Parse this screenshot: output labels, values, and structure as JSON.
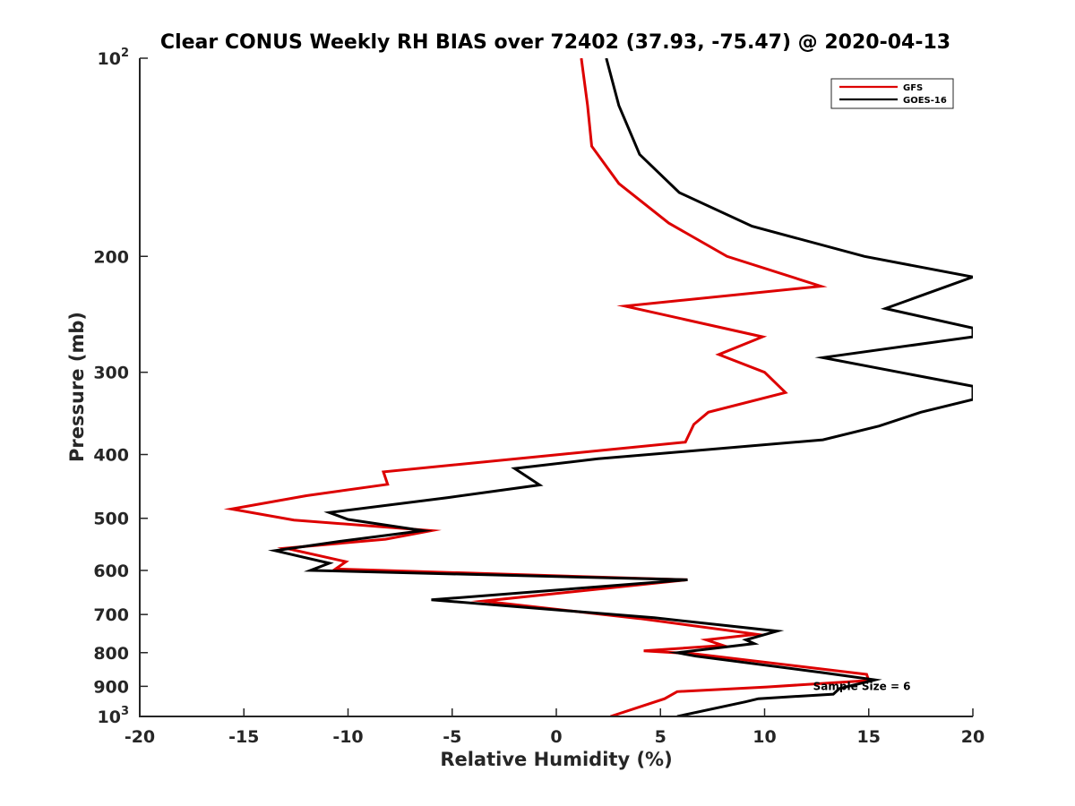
{
  "chart_data": {
    "type": "line",
    "title": "Clear CONUS Weekly RH BIAS over 72402 (37.93, -75.47) @ 2020-04-13",
    "xlabel": "Relative Humidity (%)",
    "ylabel": "Pressure (mb)",
    "xlim": [
      -20,
      20
    ],
    "ylim": [
      100,
      1000
    ],
    "yscale": "log",
    "yreversed": true,
    "xticks": [
      -20,
      -15,
      -10,
      -5,
      0,
      5,
      10,
      15,
      20
    ],
    "xtick_labels": [
      "-20",
      "-15",
      "-10",
      "-5",
      "0",
      "5",
      "10",
      "15",
      "20"
    ],
    "yticks": [
      {
        "value": 100,
        "base": "10",
        "exp": "2"
      },
      {
        "value": 200,
        "label": "200"
      },
      {
        "value": 300,
        "label": "300"
      },
      {
        "value": 400,
        "label": "400"
      },
      {
        "value": 500,
        "label": "500"
      },
      {
        "value": 600,
        "label": "600"
      },
      {
        "value": 700,
        "label": "700"
      },
      {
        "value": 800,
        "label": "800"
      },
      {
        "value": 900,
        "label": "900"
      },
      {
        "value": 1000,
        "base": "10",
        "exp": "3"
      }
    ],
    "legend_position": "top-right",
    "annotation": "Sample Size = 6",
    "annotation_position": {
      "x": 12.5,
      "p": 900
    },
    "series": [
      {
        "name": "GFS",
        "color": "#dd0000",
        "points": [
          [
            1.2,
            100
          ],
          [
            1.5,
            118
          ],
          [
            1.7,
            136
          ],
          [
            3.0,
            155
          ],
          [
            5.4,
            178
          ],
          [
            8.2,
            200
          ],
          [
            12.7,
            222
          ],
          [
            3.3,
            238
          ],
          [
            9.9,
            265
          ],
          [
            7.8,
            282
          ],
          [
            10.0,
            300
          ],
          [
            11.0,
            322
          ],
          [
            7.3,
            345
          ],
          [
            6.6,
            360
          ],
          [
            6.2,
            383
          ],
          [
            -8.3,
            425
          ],
          [
            -8.1,
            444
          ],
          [
            -12.0,
            462
          ],
          [
            -15.6,
            484
          ],
          [
            -12.6,
            503
          ],
          [
            -6.0,
            522
          ],
          [
            -8.2,
            538
          ],
          [
            -13.0,
            555
          ],
          [
            -10.1,
            582
          ],
          [
            -10.6,
            597
          ],
          [
            6.3,
            620
          ],
          [
            -3.5,
            668
          ],
          [
            4.0,
            710
          ],
          [
            9.6,
            750
          ],
          [
            7.2,
            765
          ],
          [
            8.0,
            780
          ],
          [
            4.2,
            795
          ],
          [
            6.6,
            803
          ],
          [
            14.9,
            863
          ],
          [
            15.0,
            882
          ],
          [
            10.1,
            902
          ],
          [
            5.8,
            917
          ],
          [
            5.2,
            940
          ],
          [
            2.6,
            1000
          ]
        ]
      },
      {
        "name": "GOES-16",
        "color": "#000000",
        "points": [
          [
            2.4,
            100
          ],
          [
            3.0,
            118
          ],
          [
            4.0,
            140
          ],
          [
            5.9,
            160
          ],
          [
            9.4,
            180
          ],
          [
            14.8,
            200
          ],
          [
            20.0,
            215
          ],
          [
            15.8,
            240
          ],
          [
            20.0,
            257
          ],
          [
            20.0,
            265
          ],
          [
            12.8,
            285
          ],
          [
            20.0,
            315
          ],
          [
            20.0,
            330
          ],
          [
            17.5,
            345
          ],
          [
            15.5,
            362
          ],
          [
            12.8,
            380
          ],
          [
            2.0,
            406
          ],
          [
            -2.0,
            420
          ],
          [
            -0.8,
            445
          ],
          [
            -5.2,
            465
          ],
          [
            -10.9,
            490
          ],
          [
            -10.0,
            502
          ],
          [
            -6.4,
            522
          ],
          [
            -10.4,
            542
          ],
          [
            -13.5,
            560
          ],
          [
            -10.9,
            585
          ],
          [
            -11.8,
            600
          ],
          [
            6.3,
            620
          ],
          [
            -6.0,
            665
          ],
          [
            4.7,
            708
          ],
          [
            10.6,
            742
          ],
          [
            9.1,
            765
          ],
          [
            9.5,
            775
          ],
          [
            5.8,
            800
          ],
          [
            6.7,
            810
          ],
          [
            12.8,
            858
          ],
          [
            15.3,
            880
          ],
          [
            13.6,
            907
          ],
          [
            13.3,
            925
          ],
          [
            9.7,
            940
          ],
          [
            9.1,
            950
          ],
          [
            5.8,
            1000
          ]
        ]
      }
    ]
  }
}
